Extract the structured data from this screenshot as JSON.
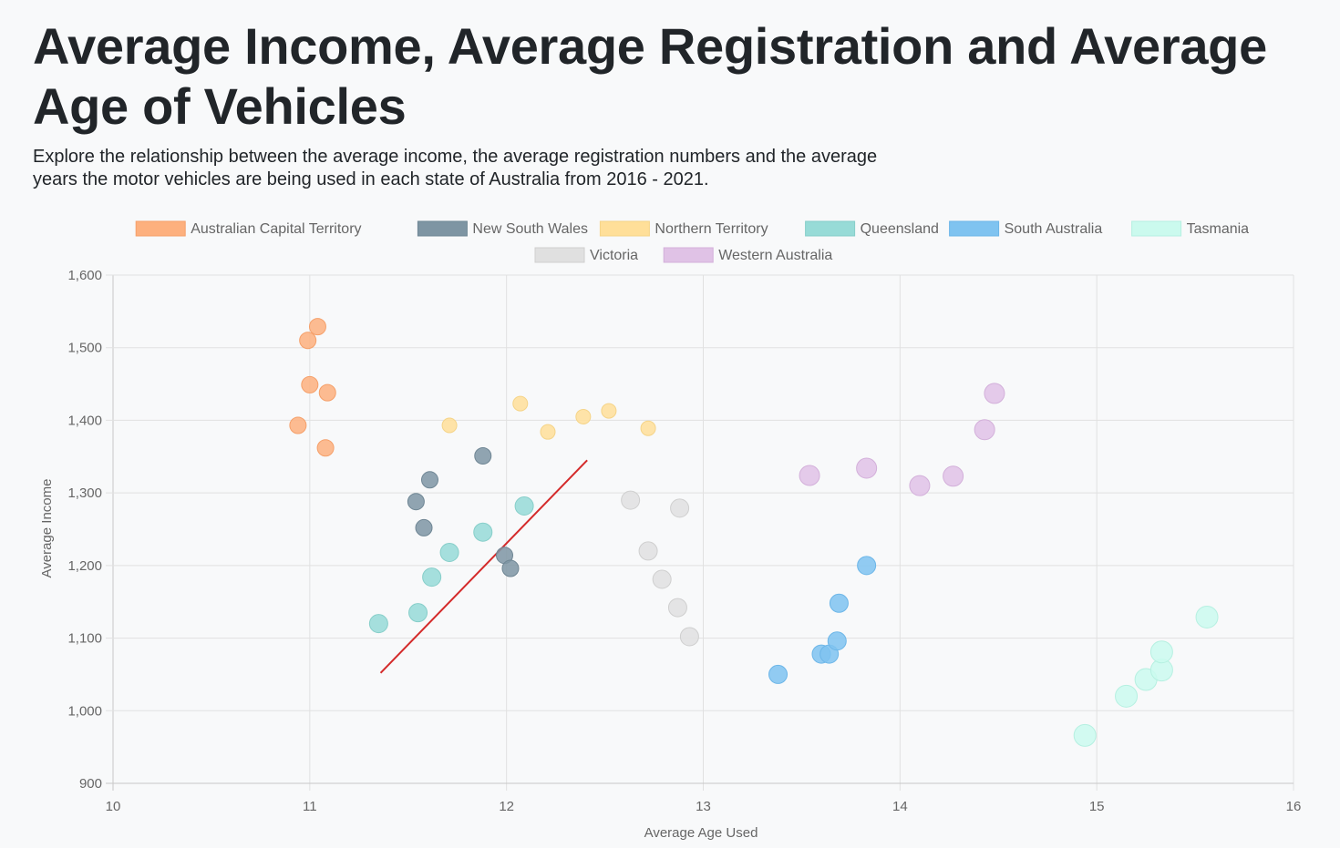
{
  "header": {
    "title": "Average Income, Average Registration and Average Age of Vehicles",
    "subtitle": "Explore the relationship between the average income, the average registration numbers and the average years the motor vehicles are being used in each state of Australia from 2016 - 2021."
  },
  "chart_data": {
    "type": "scatter",
    "xlabel": "Average Age Used",
    "ylabel": "Average Income",
    "xlim": [
      10,
      16
    ],
    "ylim": [
      900,
      1600
    ],
    "xticks": [
      "10",
      "11",
      "12",
      "13",
      "14",
      "15",
      "16"
    ],
    "yticks": [
      "900",
      "1,000",
      "1,100",
      "1,200",
      "1,300",
      "1,400",
      "1,500",
      "1,600"
    ],
    "grid": true,
    "legend_position": "top",
    "series": [
      {
        "name": "Australian Capital Territory",
        "color": "#fdb07e",
        "border": "#f5a06a",
        "points": [
          {
            "x": 10.94,
            "y": 1393
          },
          {
            "x": 10.99,
            "y": 1510
          },
          {
            "x": 11.0,
            "y": 1449
          },
          {
            "x": 11.04,
            "y": 1529
          },
          {
            "x": 11.08,
            "y": 1362
          },
          {
            "x": 11.09,
            "y": 1438
          }
        ]
      },
      {
        "name": "New South Wales",
        "color": "#7e95a3",
        "border": "#6f8694",
        "points": [
          {
            "x": 11.54,
            "y": 1288
          },
          {
            "x": 11.58,
            "y": 1252
          },
          {
            "x": 11.61,
            "y": 1318
          },
          {
            "x": 11.88,
            "y": 1351
          },
          {
            "x": 11.99,
            "y": 1214
          },
          {
            "x": 12.02,
            "y": 1196
          }
        ]
      },
      {
        "name": "Northern Territory",
        "color": "#ffdf99",
        "border": "#f5d488",
        "points": [
          {
            "x": 11.71,
            "y": 1393
          },
          {
            "x": 12.07,
            "y": 1423
          },
          {
            "x": 12.21,
            "y": 1384
          },
          {
            "x": 12.39,
            "y": 1405
          },
          {
            "x": 12.52,
            "y": 1413
          },
          {
            "x": 12.72,
            "y": 1389
          }
        ]
      },
      {
        "name": "Queensland",
        "color": "#97dbd7",
        "border": "#86cec9",
        "points": [
          {
            "x": 11.35,
            "y": 1120
          },
          {
            "x": 11.55,
            "y": 1135
          },
          {
            "x": 11.62,
            "y": 1184
          },
          {
            "x": 11.71,
            "y": 1218
          },
          {
            "x": 11.88,
            "y": 1246
          },
          {
            "x": 12.09,
            "y": 1282
          }
        ]
      },
      {
        "name": "South Australia",
        "color": "#7fc3f0",
        "border": "#6cb6e8",
        "points": [
          {
            "x": 13.38,
            "y": 1050
          },
          {
            "x": 13.6,
            "y": 1078
          },
          {
            "x": 13.64,
            "y": 1078
          },
          {
            "x": 13.68,
            "y": 1096
          },
          {
            "x": 13.69,
            "y": 1148
          },
          {
            "x": 13.83,
            "y": 1200
          }
        ]
      },
      {
        "name": "Tasmania",
        "color": "#cbfaee",
        "border": "#b6f0e1",
        "points": [
          {
            "x": 14.94,
            "y": 966
          },
          {
            "x": 15.15,
            "y": 1020
          },
          {
            "x": 15.25,
            "y": 1043
          },
          {
            "x": 15.33,
            "y": 1056
          },
          {
            "x": 15.33,
            "y": 1081
          },
          {
            "x": 15.56,
            "y": 1129
          }
        ]
      },
      {
        "name": "Victoria",
        "color": "#e0e0e0",
        "border": "#cfcfcf",
        "points": [
          {
            "x": 12.63,
            "y": 1290
          },
          {
            "x": 12.72,
            "y": 1220
          },
          {
            "x": 12.79,
            "y": 1181
          },
          {
            "x": 12.87,
            "y": 1142
          },
          {
            "x": 12.88,
            "y": 1279
          },
          {
            "x": 12.93,
            "y": 1102
          }
        ]
      },
      {
        "name": "Western Australia",
        "color": "#e0c2e6",
        "border": "#d3b0da",
        "points": [
          {
            "x": 13.54,
            "y": 1324
          },
          {
            "x": 13.83,
            "y": 1334
          },
          {
            "x": 14.1,
            "y": 1310
          },
          {
            "x": 14.27,
            "y": 1323
          },
          {
            "x": 14.43,
            "y": 1387
          },
          {
            "x": 14.48,
            "y": 1437
          }
        ]
      }
    ],
    "trendline": {
      "color": "#d42a2a",
      "from": {
        "x": 11.36,
        "y": 1052
      },
      "to": {
        "x": 12.41,
        "y": 1345
      }
    }
  }
}
